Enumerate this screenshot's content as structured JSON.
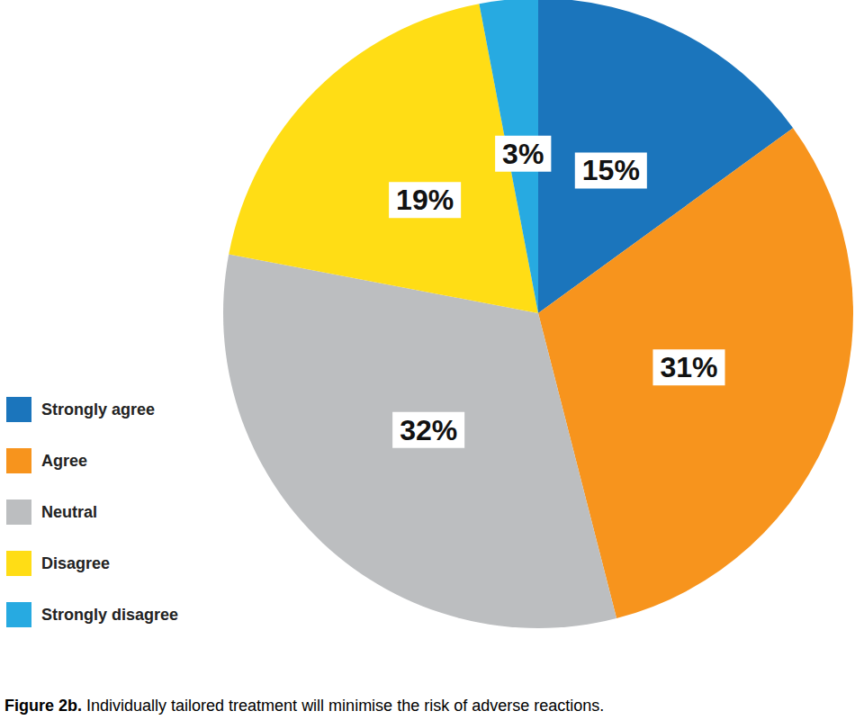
{
  "chart_data": {
    "type": "pie",
    "title": "Figure 2b. Individually tailored treatment will minimise the risk of adverse reactions.",
    "categories": [
      "Strongly agree",
      "Agree",
      "Neutral",
      "Disagree",
      "Strongly disagree"
    ],
    "values": [
      15,
      31,
      32,
      19,
      3
    ],
    "value_labels": [
      "15%",
      "31%",
      "32%",
      "19%",
      "3%"
    ],
    "colors": [
      "#1b75bc",
      "#f7941d",
      "#bcbec0",
      "#ffdd15",
      "#27aae1"
    ],
    "data_labels": true,
    "legend": "lower left"
  }
}
